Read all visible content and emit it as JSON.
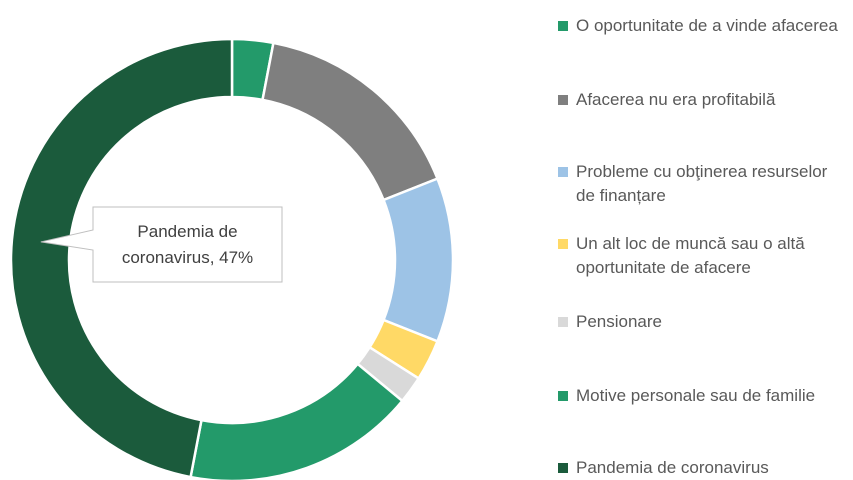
{
  "chart_data": {
    "type": "donut",
    "categories": [
      "O oportunitate de a vinde afacerea",
      "Afacerea nu era profitabilă",
      "Probleme cu obţinerea resurselor de finanțare",
      "Un alt loc de muncă sau o altă oportunitate de afacere",
      "Pensionare",
      "Motive personale sau de familie",
      "Pandemia de coronavirus"
    ],
    "values": [
      3,
      16,
      12,
      3,
      2,
      17,
      47
    ],
    "value_labels": [
      null,
      null,
      null,
      null,
      null,
      null,
      "Pandemia de coronavirus, 47%"
    ],
    "colors": [
      "#239a6a",
      "#7f7f7f",
      "#9dc3e6",
      "#ffd966",
      "#d9d9d9",
      "#239a6a",
      "#1b5b3c"
    ],
    "legend": "right"
  }
}
